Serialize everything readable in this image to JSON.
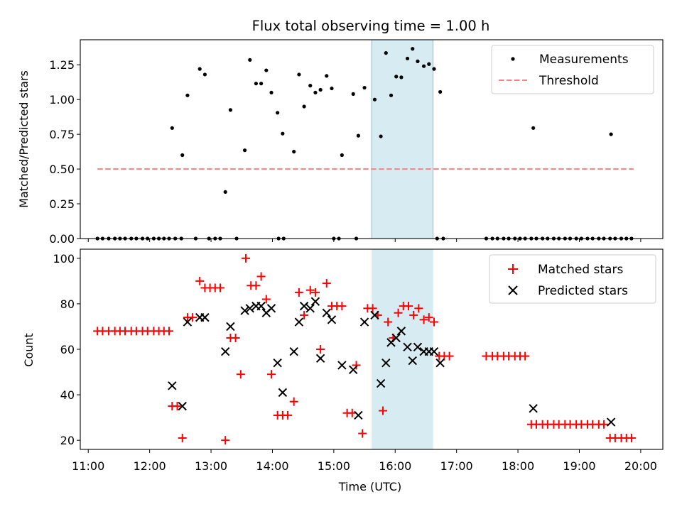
{
  "chart_data": [
    {
      "type": "scatter",
      "title": "Flux total observing time = 1.00 h",
      "xlabel": "",
      "ylabel": "Matched/Predicted stars",
      "xlim": [
        "11:00",
        "20:00"
      ],
      "ylim": [
        0,
        1.43
      ],
      "yticks": [
        "0.00",
        "0.25",
        "0.50",
        "0.75",
        "1.00",
        "1.25"
      ],
      "highlight_span": {
        "start": "15:37",
        "end": "16:37",
        "color": "#add8e6"
      },
      "threshold": {
        "name": "Threshold",
        "value": 0.5,
        "x_start": "11:09",
        "x_end": "19:53",
        "color": "#ff7f7f"
      },
      "series": [
        {
          "name": "Measurements",
          "color": "#000000",
          "points": [
            [
              "11:09",
              0
            ],
            [
              "11:14",
              0
            ],
            [
              "11:20",
              0
            ],
            [
              "11:26",
              0
            ],
            [
              "11:31",
              0
            ],
            [
              "11:36",
              0
            ],
            [
              "11:42",
              0
            ],
            [
              "11:47",
              0
            ],
            [
              "11:53",
              0
            ],
            [
              "11:58",
              0
            ],
            [
              "12:04",
              0
            ],
            [
              "12:09",
              0
            ],
            [
              "12:14",
              0
            ],
            [
              "12:19",
              0
            ],
            [
              "12:25",
              0
            ],
            [
              "12:31",
              0
            ],
            [
              "12:45",
              0
            ],
            [
              "12:58",
              0
            ],
            [
              "13:04",
              0
            ],
            [
              "13:09",
              0
            ],
            [
              "13:25",
              0
            ],
            [
              "14:06",
              0
            ],
            [
              "14:11",
              0
            ],
            [
              "15:00",
              0
            ],
            [
              "15:05",
              0
            ],
            [
              "15:22",
              0
            ],
            [
              "16:41",
              0
            ],
            [
              "16:47",
              0
            ],
            [
              "17:29",
              0
            ],
            [
              "17:35",
              0
            ],
            [
              "17:40",
              0
            ],
            [
              "17:46",
              0
            ],
            [
              "17:51",
              0
            ],
            [
              "17:57",
              0
            ],
            [
              "18:02",
              0
            ],
            [
              "18:07",
              0
            ],
            [
              "18:13",
              0
            ],
            [
              "18:18",
              0
            ],
            [
              "18:24",
              0
            ],
            [
              "18:29",
              0
            ],
            [
              "18:35",
              0
            ],
            [
              "18:40",
              0
            ],
            [
              "18:46",
              0
            ],
            [
              "18:51",
              0
            ],
            [
              "18:57",
              0
            ],
            [
              "19:02",
              0
            ],
            [
              "19:08",
              0
            ],
            [
              "19:13",
              0
            ],
            [
              "19:19",
              0
            ],
            [
              "19:24",
              0
            ],
            [
              "19:30",
              0
            ],
            [
              "19:35",
              0
            ],
            [
              "19:41",
              0
            ],
            [
              "19:46",
              0
            ],
            [
              "19:51",
              0
            ],
            [
              "12:22",
              0.795
            ],
            [
              "12:32",
              0.6
            ],
            [
              "12:37",
              1.03
            ],
            [
              "12:49",
              1.22
            ],
            [
              "12:54",
              1.18
            ],
            [
              "13:14",
              0.335
            ],
            [
              "13:19",
              0.925
            ],
            [
              "13:33",
              0.635
            ],
            [
              "13:38",
              1.285
            ],
            [
              "13:44",
              1.115
            ],
            [
              "13:49",
              1.115
            ],
            [
              "13:54",
              1.21
            ],
            [
              "13:59",
              1.05
            ],
            [
              "14:05",
              0.905
            ],
            [
              "14:10",
              0.755
            ],
            [
              "14:21",
              0.625
            ],
            [
              "14:26",
              1.18
            ],
            [
              "14:31",
              0.95
            ],
            [
              "14:37",
              1.1
            ],
            [
              "14:42",
              1.05
            ],
            [
              "14:47",
              1.07
            ],
            [
              "14:53",
              1.17
            ],
            [
              "14:58",
              1.08
            ],
            [
              "15:08",
              0.6
            ],
            [
              "15:19",
              1.04
            ],
            [
              "15:24",
              0.74
            ],
            [
              "15:30",
              1.085
            ],
            [
              "15:40",
              1.0
            ],
            [
              "15:46",
              0.735
            ],
            [
              "15:51",
              1.335
            ],
            [
              "15:56",
              1.03
            ],
            [
              "16:01",
              1.165
            ],
            [
              "16:06",
              1.16
            ],
            [
              "16:12",
              1.295
            ],
            [
              "16:17",
              1.365
            ],
            [
              "16:22",
              1.275
            ],
            [
              "16:28",
              1.24
            ],
            [
              "16:33",
              1.255
            ],
            [
              "16:38",
              1.22
            ],
            [
              "16:44",
              1.055
            ],
            [
              "18:15",
              0.795
            ],
            [
              "19:31",
              0.75
            ]
          ]
        }
      ],
      "legend": [
        "Measurements",
        "Threshold"
      ],
      "legend_position": "top-right",
      "grid": false
    },
    {
      "type": "scatter",
      "title": "",
      "xlabel": "Time (UTC)",
      "ylabel": "Count",
      "xlim": [
        "11:00",
        "20:00"
      ],
      "ylim": [
        16,
        104
      ],
      "yticks": [
        "20",
        "40",
        "60",
        "80",
        "100"
      ],
      "xticks": [
        "11:00",
        "12:00",
        "13:00",
        "14:00",
        "15:00",
        "16:00",
        "17:00",
        "18:00",
        "19:00",
        "20:00"
      ],
      "highlight_span": {
        "start": "15:37",
        "end": "16:37",
        "color": "#add8e6"
      },
      "series": [
        {
          "name": "Matched stars",
          "marker": "+",
          "color": "#ff0000",
          "points": [
            [
              "11:09",
              68
            ],
            [
              "11:14",
              68
            ],
            [
              "11:20",
              68
            ],
            [
              "11:26",
              68
            ],
            [
              "11:31",
              68
            ],
            [
              "11:36",
              68
            ],
            [
              "11:42",
              68
            ],
            [
              "11:47",
              68
            ],
            [
              "11:53",
              68
            ],
            [
              "11:58",
              68
            ],
            [
              "12:04",
              68
            ],
            [
              "12:09",
              68
            ],
            [
              "12:14",
              68
            ],
            [
              "12:19",
              68
            ],
            [
              "12:22",
              35
            ],
            [
              "12:27",
              35
            ],
            [
              "12:32",
              21
            ],
            [
              "12:37",
              74
            ],
            [
              "12:42",
              74
            ],
            [
              "12:49",
              90
            ],
            [
              "12:54",
              87
            ],
            [
              "12:59",
              87
            ],
            [
              "13:04",
              87
            ],
            [
              "13:09",
              87
            ],
            [
              "13:14",
              20
            ],
            [
              "13:19",
              65
            ],
            [
              "13:24",
              65
            ],
            [
              "13:29",
              49
            ],
            [
              "13:34",
              100
            ],
            [
              "13:39",
              88
            ],
            [
              "13:44",
              88
            ],
            [
              "13:49",
              92
            ],
            [
              "13:54",
              82
            ],
            [
              "13:59",
              49
            ],
            [
              "14:05",
              31
            ],
            [
              "14:10",
              31
            ],
            [
              "14:15",
              31
            ],
            [
              "14:21",
              37
            ],
            [
              "14:26",
              85
            ],
            [
              "14:31",
              75
            ],
            [
              "14:37",
              86
            ],
            [
              "14:42",
              85
            ],
            [
              "14:47",
              60
            ],
            [
              "14:53",
              89
            ],
            [
              "14:58",
              79
            ],
            [
              "15:03",
              79
            ],
            [
              "15:08",
              79
            ],
            [
              "15:13",
              32
            ],
            [
              "15:18",
              32
            ],
            [
              "15:22",
              53
            ],
            [
              "15:28",
              23
            ],
            [
              "15:33",
              78
            ],
            [
              "15:38",
              78
            ],
            [
              "15:43",
              75
            ],
            [
              "15:48",
              33
            ],
            [
              "15:53",
              72
            ],
            [
              "15:58",
              65
            ],
            [
              "16:03",
              76
            ],
            [
              "16:08",
              79
            ],
            [
              "16:13",
              79
            ],
            [
              "16:18",
              75
            ],
            [
              "16:23",
              78
            ],
            [
              "16:28",
              73
            ],
            [
              "16:33",
              74
            ],
            [
              "16:38",
              72
            ],
            [
              "16:43",
              57
            ],
            [
              "16:48",
              57
            ],
            [
              "16:53",
              57
            ],
            [
              "17:29",
              57
            ],
            [
              "17:35",
              57
            ],
            [
              "17:40",
              57
            ],
            [
              "17:46",
              57
            ],
            [
              "17:51",
              57
            ],
            [
              "17:57",
              57
            ],
            [
              "18:02",
              57
            ],
            [
              "18:07",
              57
            ],
            [
              "18:13",
              27
            ],
            [
              "18:18",
              27
            ],
            [
              "18:24",
              27
            ],
            [
              "18:29",
              27
            ],
            [
              "18:35",
              27
            ],
            [
              "18:40",
              27
            ],
            [
              "18:46",
              27
            ],
            [
              "18:51",
              27
            ],
            [
              "18:57",
              27
            ],
            [
              "19:02",
              27
            ],
            [
              "19:08",
              27
            ],
            [
              "19:13",
              27
            ],
            [
              "19:19",
              27
            ],
            [
              "19:24",
              27
            ],
            [
              "19:30",
              21
            ],
            [
              "19:35",
              21
            ],
            [
              "19:41",
              21
            ],
            [
              "19:46",
              21
            ],
            [
              "19:51",
              21
            ]
          ]
        },
        {
          "name": "Predicted stars",
          "marker": "x",
          "color": "#000000",
          "points": [
            [
              "12:22",
              44
            ],
            [
              "12:32",
              35
            ],
            [
              "12:37",
              72
            ],
            [
              "12:49",
              74
            ],
            [
              "12:54",
              74
            ],
            [
              "13:14",
              59
            ],
            [
              "13:19",
              70
            ],
            [
              "13:33",
              77
            ],
            [
              "13:38",
              78
            ],
            [
              "13:44",
              79
            ],
            [
              "13:49",
              79
            ],
            [
              "13:54",
              76
            ],
            [
              "13:59",
              78
            ],
            [
              "14:05",
              54
            ],
            [
              "14:10",
              41
            ],
            [
              "14:21",
              59
            ],
            [
              "14:26",
              72
            ],
            [
              "14:31",
              79
            ],
            [
              "14:37",
              78
            ],
            [
              "14:42",
              81
            ],
            [
              "14:47",
              56
            ],
            [
              "14:53",
              76
            ],
            [
              "14:58",
              73
            ],
            [
              "15:08",
              53
            ],
            [
              "15:19",
              51
            ],
            [
              "15:24",
              31
            ],
            [
              "15:30",
              72
            ],
            [
              "15:40",
              75
            ],
            [
              "15:46",
              45
            ],
            [
              "15:51",
              54
            ],
            [
              "15:56",
              63
            ],
            [
              "16:01",
              65
            ],
            [
              "16:06",
              68
            ],
            [
              "16:12",
              61
            ],
            [
              "16:17",
              55
            ],
            [
              "16:22",
              61
            ],
            [
              "16:28",
              59
            ],
            [
              "16:33",
              59
            ],
            [
              "16:38",
              59
            ],
            [
              "16:44",
              54
            ],
            [
              "18:15",
              34
            ],
            [
              "19:31",
              28
            ]
          ]
        }
      ],
      "legend": [
        "Matched stars",
        "Predicted stars"
      ],
      "legend_position": "top-right",
      "grid": false
    }
  ]
}
